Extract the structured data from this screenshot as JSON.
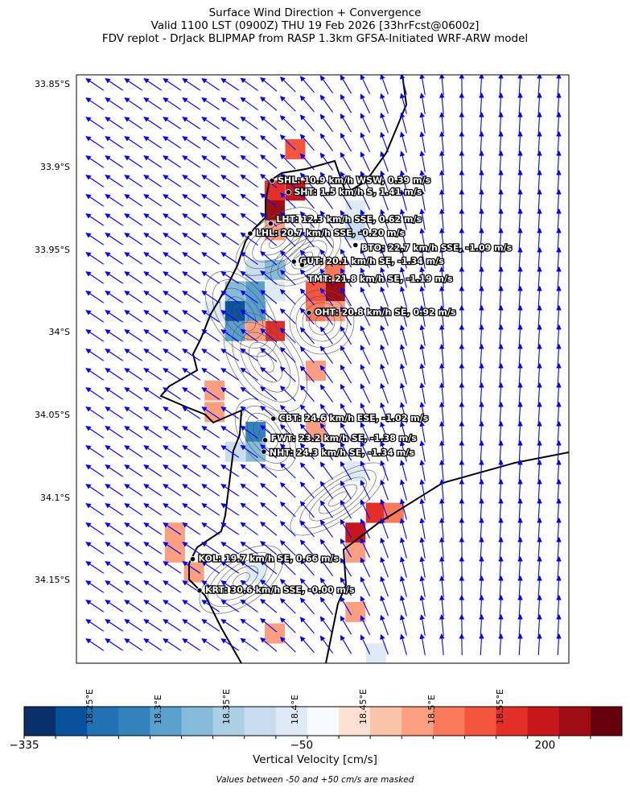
{
  "title_lines": [
    "Surface Wind Direction + Convergence",
    "Valid 1100 LST (0900Z) THU 19 Feb 2026 [33hrFcst@0600z]",
    "FDV replot - DrJack BLIPMAP from RASP 1.3km GFSA-Initiated WRF-ARW model"
  ],
  "chart_data": {
    "type": "map",
    "extent": {
      "lon": [
        18.24,
        18.6
      ],
      "lat": [
        -34.2,
        -33.844
      ]
    },
    "lon_ticks": [
      {
        "value": 18.25,
        "label": "18.25°E"
      },
      {
        "value": 18.3,
        "label": "18.3°E"
      },
      {
        "value": 18.35,
        "label": "18.35°E"
      },
      {
        "value": 18.4,
        "label": "18.4°E"
      },
      {
        "value": 18.45,
        "label": "18.45°E"
      },
      {
        "value": 18.5,
        "label": "18.5°E"
      },
      {
        "value": 18.55,
        "label": "18.55°E"
      }
    ],
    "lat_ticks": [
      {
        "value": -33.85,
        "label": "33.85°S"
      },
      {
        "value": -33.9,
        "label": "33.9°S"
      },
      {
        "value": -33.95,
        "label": "33.95°S"
      },
      {
        "value": -34.0,
        "label": "34°S"
      },
      {
        "value": -34.05,
        "label": "34.05°S"
      },
      {
        "value": -34.1,
        "label": "34.1°S"
      },
      {
        "value": -34.15,
        "label": "34.15°S"
      }
    ],
    "wind_arrow_color": "#0000ff",
    "stations": [
      {
        "label": "SHL: 10.9 km/h WSW, 0.39 m/s",
        "lon": 18.383,
        "lat": -33.908
      },
      {
        "label": "SHT: 1.5 km/h S, 1.41 m/s",
        "lon": 18.395,
        "lat": -33.915
      },
      {
        "label": "LHT: 12.3 km/h SSE, 0.62 m/s",
        "lon": 18.382,
        "lat": -33.934
      },
      {
        "label": "LHL: 20.7 km/h SSE, -0.20 m/s",
        "lon": 18.367,
        "lat": -33.94
      },
      {
        "label": "BTO: 22.7 km/h SSE, -1.09 m/s",
        "lon": 18.444,
        "lat": -33.947
      },
      {
        "label": "GUT: 20.1 km/h SE, -1.34 m/s",
        "lon": 18.399,
        "lat": -33.957
      },
      {
        "label": "TMT: 21.8 km/h SE, -1.19 m/s",
        "lon": 18.405,
        "lat": -33.959
      },
      {
        "label": "OHT: 20.8 km/h SE, 0.92 m/s",
        "lon": 18.41,
        "lat": -33.988
      },
      {
        "label": "CBT: 24.6 km/h ESE, -1.02 m/s",
        "lon": 18.384,
        "lat": -34.052
      },
      {
        "label": "FWT: 23.2 km/h SE, -1.38 m/s",
        "lon": 18.378,
        "lat": -34.065
      },
      {
        "label": "NHT: 24.3 km/h SE, -1.34 m/s",
        "lon": 18.377,
        "lat": -34.072
      },
      {
        "label": "KOL: 19.7 km/h SE, 0.66 m/s",
        "lon": 18.325,
        "lat": -34.137
      },
      {
        "label": "KRT: 30.6 km/h SSE, -0.00 m/s",
        "lon": 18.33,
        "lat": -34.156
      }
    ],
    "convergence_cells": [
      [
        18.4,
        -33.889,
        120
      ],
      [
        18.385,
        -33.914,
        150
      ],
      [
        18.4,
        -33.914,
        200
      ],
      [
        18.385,
        -33.926,
        230
      ],
      [
        18.385,
        -33.938,
        60
      ],
      [
        18.371,
        -33.962,
        -90
      ],
      [
        18.385,
        -33.962,
        -150
      ],
      [
        18.371,
        -33.975,
        -200
      ],
      [
        18.356,
        -33.975,
        -150
      ],
      [
        18.385,
        -33.975,
        -70
      ],
      [
        18.341,
        -33.987,
        -70
      ],
      [
        18.356,
        -33.987,
        -280
      ],
      [
        18.371,
        -33.987,
        -200
      ],
      [
        18.356,
        -33.999,
        -200
      ],
      [
        18.385,
        -33.999,
        150
      ],
      [
        18.371,
        -33.999,
        60
      ],
      [
        18.429,
        -33.975,
        220
      ],
      [
        18.415,
        -33.975,
        120
      ],
      [
        18.429,
        -33.962,
        100
      ],
      [
        18.415,
        -33.987,
        90
      ],
      [
        18.429,
        -33.987,
        60
      ],
      [
        18.444,
        -33.926,
        -60
      ],
      [
        18.444,
        -33.938,
        -80
      ],
      [
        18.371,
        -34.06,
        -220
      ],
      [
        18.371,
        -34.072,
        -150
      ],
      [
        18.356,
        -34.072,
        -80
      ],
      [
        18.415,
        -34.06,
        70
      ],
      [
        18.415,
        -34.023,
        60
      ],
      [
        18.341,
        -34.035,
        60
      ],
      [
        18.341,
        -34.048,
        60
      ],
      [
        18.444,
        -34.084,
        -70
      ],
      [
        18.459,
        -34.109,
        150
      ],
      [
        18.444,
        -34.121,
        200
      ],
      [
        18.472,
        -34.109,
        100
      ],
      [
        18.444,
        -34.133,
        60
      ],
      [
        18.312,
        -34.121,
        60
      ],
      [
        18.312,
        -34.133,
        60
      ],
      [
        18.326,
        -34.145,
        70
      ],
      [
        18.371,
        -34.145,
        -60
      ],
      [
        18.444,
        -34.169,
        55
      ],
      [
        18.459,
        -34.194,
        -60
      ],
      [
        18.385,
        -34.182,
        55
      ]
    ],
    "colorbar": {
      "label": "Vertical Velocity [cm/s]",
      "range": [
        -335,
        279
      ],
      "ticks": [
        {
          "value": -335,
          "label": "−335"
        },
        {
          "value": -50,
          "label": "−50"
        },
        {
          "value": 200,
          "label": "200"
        }
      ],
      "colors": [
        "#08306b",
        "#08519c",
        "#2171b5",
        "#3182bd",
        "#5aa0cd",
        "#85bcdc",
        "#abd0e6",
        "#c9ddf0",
        "#deebf7",
        "#f7fbff",
        "#fee0d2",
        "#fcc3ab",
        "#fc9f81",
        "#fb7a5a",
        "#f5553d",
        "#e32f27",
        "#c5171c",
        "#9e0d14",
        "#67000d"
      ],
      "note": "Values between -50 and +50 cm/s are masked"
    }
  }
}
